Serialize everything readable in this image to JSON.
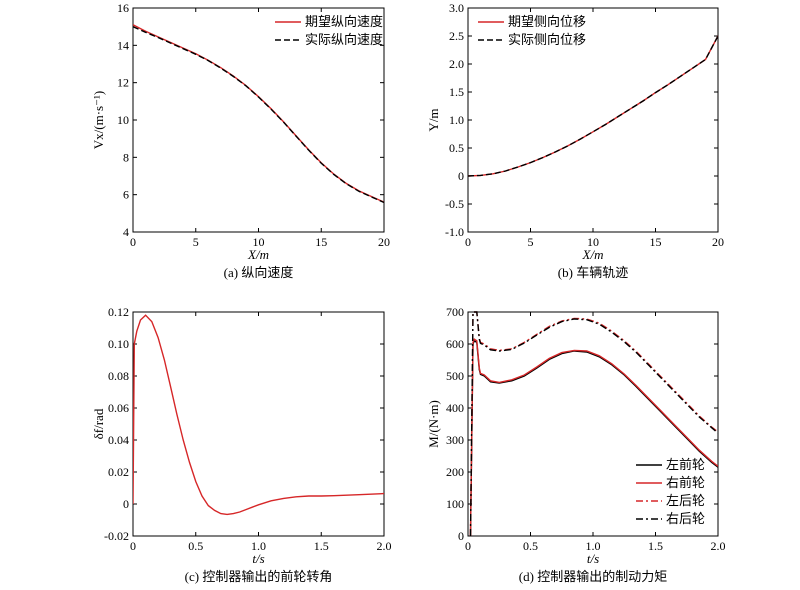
{
  "chart_data": [
    {
      "type": "line",
      "xlabel": "X/m",
      "ylabel": "Vx/(m·s⁻¹)",
      "caption": "(a) 纵向速度",
      "xlim": [
        0,
        20
      ],
      "ylim": [
        4,
        16
      ],
      "xticks": [
        0,
        5,
        10,
        15,
        20
      ],
      "yticks": [
        4,
        6,
        8,
        10,
        12,
        14,
        16
      ],
      "legend_position": "top-right",
      "series": [
        {
          "name": "期望纵向速度",
          "color": "#d62728",
          "dash": "solid",
          "x": [
            0,
            1,
            2,
            3,
            4,
            5,
            6,
            7,
            8,
            9,
            10,
            11,
            12,
            13,
            14,
            15,
            16,
            17,
            18,
            19,
            20
          ],
          "y": [
            15.1,
            14.75,
            14.45,
            14.15,
            13.85,
            13.55,
            13.2,
            12.8,
            12.35,
            11.85,
            11.25,
            10.6,
            9.9,
            9.15,
            8.4,
            7.7,
            7.1,
            6.6,
            6.2,
            5.9,
            5.6
          ]
        },
        {
          "name": "实际纵向速度",
          "color": "#000000",
          "dash": "dashed",
          "x": [
            0,
            1,
            2,
            3,
            4,
            5,
            6,
            7,
            8,
            9,
            10,
            11,
            12,
            13,
            14,
            15,
            16,
            17,
            18,
            19,
            20
          ],
          "y": [
            15.0,
            14.7,
            14.42,
            14.12,
            13.82,
            13.52,
            13.18,
            12.78,
            12.33,
            11.83,
            11.23,
            10.58,
            9.88,
            9.13,
            8.38,
            7.68,
            7.08,
            6.58,
            6.18,
            5.88,
            5.58
          ]
        }
      ]
    },
    {
      "type": "line",
      "xlabel": "X/m",
      "ylabel": "Y/m",
      "caption": "(b) 车辆轨迹",
      "xlim": [
        0,
        20
      ],
      "ylim": [
        -1.0,
        3.0
      ],
      "xticks": [
        0,
        5,
        10,
        15,
        20
      ],
      "yticks": [
        -1.0,
        -0.5,
        0,
        0.5,
        1.0,
        1.5,
        2.0,
        2.5,
        3.0
      ],
      "legend_position": "top-left",
      "series": [
        {
          "name": "期望侧向位移",
          "color": "#d62728",
          "dash": "solid",
          "x": [
            0,
            1,
            2,
            3,
            4,
            5,
            6,
            7,
            8,
            9,
            10,
            11,
            12,
            13,
            14,
            15,
            16,
            17,
            18,
            19,
            20
          ],
          "y": [
            0,
            0.01,
            0.04,
            0.09,
            0.16,
            0.24,
            0.33,
            0.43,
            0.54,
            0.66,
            0.79,
            0.92,
            1.06,
            1.2,
            1.34,
            1.49,
            1.63,
            1.78,
            1.93,
            2.08,
            2.5
          ]
        },
        {
          "name": "实际侧向位移",
          "color": "#000000",
          "dash": "dashed",
          "x": [
            0,
            1,
            2,
            3,
            4,
            5,
            6,
            7,
            8,
            9,
            10,
            11,
            12,
            13,
            14,
            15,
            16,
            17,
            18,
            19,
            20
          ],
          "y": [
            0,
            0.01,
            0.04,
            0.09,
            0.16,
            0.24,
            0.33,
            0.43,
            0.54,
            0.66,
            0.79,
            0.92,
            1.06,
            1.2,
            1.34,
            1.49,
            1.63,
            1.78,
            1.93,
            2.08,
            2.5
          ]
        }
      ]
    },
    {
      "type": "line",
      "xlabel": "t/s",
      "ylabel": "δf/rad",
      "caption": "(c) 控制器输出的前轮转角",
      "xlim": [
        0,
        2.0
      ],
      "ylim": [
        -0.02,
        0.12
      ],
      "xticks": [
        0,
        0.5,
        1.0,
        1.5,
        2.0
      ],
      "yticks": [
        -0.02,
        0,
        0.02,
        0.04,
        0.06,
        0.08,
        0.1,
        0.12
      ],
      "series": [
        {
          "name": "",
          "color": "#d62728",
          "dash": "solid",
          "x": [
            0,
            0.01,
            0.03,
            0.06,
            0.1,
            0.15,
            0.2,
            0.25,
            0.3,
            0.35,
            0.4,
            0.45,
            0.5,
            0.55,
            0.6,
            0.65,
            0.7,
            0.75,
            0.8,
            0.85,
            0.9,
            0.95,
            1.0,
            1.1,
            1.2,
            1.3,
            1.4,
            1.5,
            1.6,
            1.8,
            2.0
          ],
          "y": [
            0.0,
            0.1,
            0.108,
            0.115,
            0.118,
            0.114,
            0.104,
            0.09,
            0.073,
            0.056,
            0.04,
            0.026,
            0.014,
            0.005,
            -0.001,
            -0.004,
            -0.006,
            -0.0065,
            -0.006,
            -0.005,
            -0.0035,
            -0.002,
            -0.0005,
            0.002,
            0.0035,
            0.0045,
            0.005,
            0.005,
            0.0052,
            0.0058,
            0.0065
          ]
        }
      ]
    },
    {
      "type": "line",
      "xlabel": "t/s",
      "ylabel": "M/(N·m)",
      "caption": "(d) 控制器输出的制动力矩",
      "xlim": [
        0,
        2.0
      ],
      "ylim": [
        0,
        700
      ],
      "xticks": [
        0,
        0.5,
        1.0,
        1.5,
        2.0
      ],
      "yticks": [
        0,
        100,
        200,
        300,
        400,
        500,
        600,
        700
      ],
      "legend_position": "bottom-right",
      "series": [
        {
          "name": "左前轮",
          "color": "#000000",
          "dash": "solid",
          "x": [
            0.02,
            0.04,
            0.05,
            0.07,
            0.09,
            0.1,
            0.13,
            0.18,
            0.25,
            0.35,
            0.45,
            0.55,
            0.65,
            0.75,
            0.85,
            0.95,
            1.05,
            1.15,
            1.25,
            1.35,
            1.45,
            1.55,
            1.65,
            1.75,
            1.85,
            1.95,
            2.0
          ],
          "y": [
            0,
            600,
            610,
            605,
            520,
            505,
            500,
            482,
            478,
            485,
            500,
            525,
            552,
            570,
            578,
            575,
            560,
            535,
            503,
            465,
            425,
            385,
            345,
            305,
            265,
            230,
            215
          ]
        },
        {
          "name": "右前轮",
          "color": "#d62728",
          "dash": "solid",
          "x": [
            0.02,
            0.04,
            0.05,
            0.07,
            0.09,
            0.1,
            0.13,
            0.18,
            0.25,
            0.35,
            0.45,
            0.55,
            0.65,
            0.75,
            0.85,
            0.95,
            1.05,
            1.15,
            1.25,
            1.35,
            1.45,
            1.55,
            1.65,
            1.75,
            1.85,
            1.95,
            2.0
          ],
          "y": [
            0,
            605,
            615,
            610,
            525,
            508,
            503,
            485,
            480,
            488,
            503,
            528,
            555,
            573,
            580,
            578,
            563,
            538,
            506,
            468,
            428,
            388,
            348,
            308,
            268,
            233,
            218
          ]
        },
        {
          "name": "左后轮",
          "color": "#d62728",
          "dash": "dashdot",
          "x": [
            0.02,
            0.04,
            0.05,
            0.07,
            0.09,
            0.1,
            0.13,
            0.18,
            0.25,
            0.35,
            0.45,
            0.55,
            0.65,
            0.75,
            0.85,
            0.95,
            1.05,
            1.15,
            1.25,
            1.35,
            1.45,
            1.55,
            1.65,
            1.75,
            1.85,
            1.95,
            2.0
          ],
          "y": [
            0,
            700,
            700,
            700,
            618,
            605,
            600,
            585,
            580,
            585,
            605,
            630,
            655,
            672,
            680,
            678,
            665,
            640,
            610,
            575,
            535,
            495,
            455,
            415,
            375,
            340,
            325
          ]
        },
        {
          "name": "右后轮",
          "color": "#000000",
          "dash": "dashdot",
          "x": [
            0.02,
            0.04,
            0.05,
            0.07,
            0.09,
            0.1,
            0.13,
            0.18,
            0.25,
            0.35,
            0.45,
            0.55,
            0.65,
            0.75,
            0.85,
            0.95,
            1.05,
            1.15,
            1.25,
            1.35,
            1.45,
            1.55,
            1.65,
            1.75,
            1.85,
            1.95,
            2.0
          ],
          "y": [
            0,
            700,
            700,
            700,
            615,
            602,
            597,
            582,
            578,
            583,
            603,
            628,
            652,
            670,
            678,
            676,
            662,
            637,
            607,
            572,
            532,
            492,
            452,
            412,
            372,
            338,
            322
          ]
        }
      ]
    }
  ]
}
